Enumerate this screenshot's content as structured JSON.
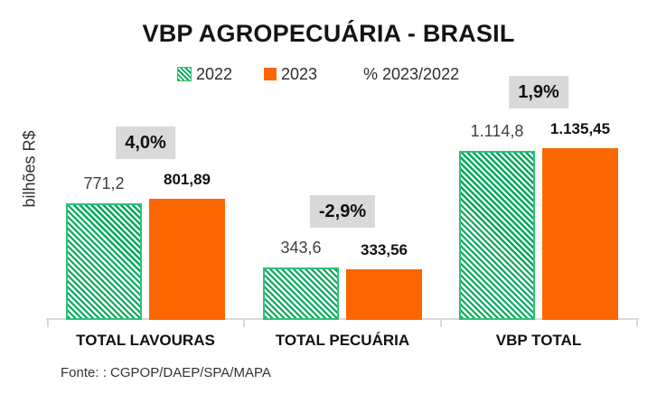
{
  "title": "VBP AGROPECUÁRIA - BRASIL",
  "y_axis_label": "bilhões R$",
  "source": "Fonte: : CGPOP/DAEP/SPA/MAPA",
  "legend": {
    "items": [
      {
        "label": "2022",
        "swatch": "green-hatch-swatch"
      },
      {
        "label": "2023",
        "swatch": "orange-swatch"
      },
      {
        "label": "% 2023/2022",
        "swatch": "none"
      }
    ]
  },
  "colors": {
    "green_2022": "#00a95c",
    "green_border": "#2cc278",
    "orange_2023": "#fc6600",
    "pct_badge_bg": "#d9d9d9",
    "axis_line": "#d9d9d9",
    "title_text": "#141414"
  },
  "chart_data": {
    "type": "bar",
    "title": "VBP AGROPECUÁRIA - BRASIL",
    "ylabel": "bilhões R$",
    "xlabel": "",
    "ylim": [
      0,
      1200
    ],
    "grid": false,
    "legend_position": "top",
    "categories": [
      "TOTAL LAVOURAS",
      "TOTAL PECUÁRIA",
      "VBP TOTAL"
    ],
    "series": [
      {
        "name": "2022",
        "values": [
          771.2,
          343.6,
          1114.8
        ],
        "labels": [
          "771,2",
          "343,6",
          "1.114,8"
        ]
      },
      {
        "name": "2023",
        "values": [
          801.89,
          333.56,
          1135.45
        ],
        "labels": [
          "801,89",
          "333,56",
          "1.135,45"
        ]
      }
    ],
    "pct_change": [
      "4,0%",
      "-2,9%",
      "1,9%"
    ]
  }
}
